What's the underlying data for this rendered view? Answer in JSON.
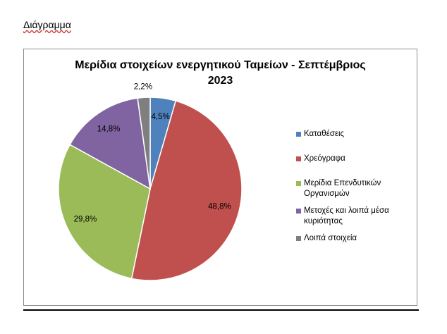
{
  "document": {
    "heading": "Διάγραμμα"
  },
  "chart_data": {
    "type": "pie",
    "title_lines": [
      "Μερίδια στοιχείων ενεργητικού Ταμείων -  Σεπτέμβριος",
      "2023"
    ],
    "categories": [
      "Καταθέσεις",
      "Χρεόγραφα",
      "Μερίδια Επενδυτικών Οργανισμών",
      "Μετοχές και λοιπά μέσα κυριότητας",
      "Λοιπά στοιχεία"
    ],
    "legend_lines": [
      [
        "Καταθέσεις"
      ],
      [
        "Χρεόγραφα"
      ],
      [
        "Μερίδια Επενδυτικών",
        "Οργανισμών"
      ],
      [
        "Μετοχές και λοιπά μέσα",
        "κυριότητας"
      ],
      [
        "Λοιπά στοιχεία"
      ]
    ],
    "values": [
      4.5,
      48.8,
      29.8,
      14.8,
      2.2
    ],
    "data_labels": [
      "4,5%",
      "48,8%",
      "29,8%",
      "14,8%",
      "2,2%"
    ],
    "colors": [
      "#4f81bd",
      "#c0504d",
      "#9bbb59",
      "#8064a2",
      "#7f7f7f"
    ],
    "legend_position": "right"
  }
}
